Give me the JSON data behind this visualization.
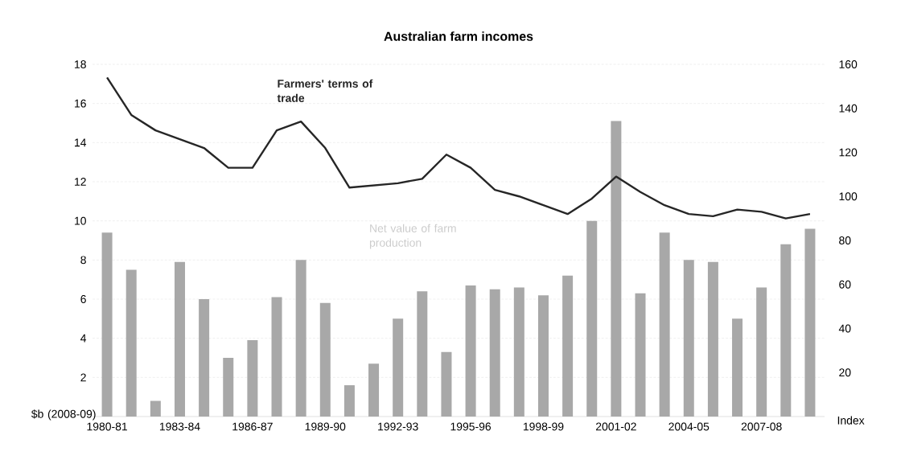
{
  "chart_data": {
    "type": "bar",
    "title": "Australian farm incomes",
    "categories": [
      "1980-81",
      null,
      null,
      "1983-84",
      null,
      null,
      "1986-87",
      null,
      null,
      "1989-90",
      null,
      null,
      "1992-93",
      null,
      null,
      "1995-96",
      null,
      null,
      "1998-99",
      null,
      null,
      "2001-02",
      null,
      null,
      "2004-05",
      null,
      null,
      "2007-08",
      null,
      null
    ],
    "series": [
      {
        "name": "Net value of farm production",
        "color": "#a8a8a8",
        "values": [
          9.4,
          7.5,
          0.8,
          7.9,
          6.0,
          3.0,
          3.9,
          6.1,
          8.0,
          5.8,
          1.6,
          2.7,
          5.0,
          6.4,
          3.3,
          6.7,
          6.5,
          6.6,
          6.2,
          7.2,
          10.0,
          15.1,
          6.3,
          9.4,
          8.0,
          7.9,
          5.0,
          6.6,
          8.8,
          9.6
        ]
      },
      {
        "name": "Farmers' terms of trade",
        "type": "line",
        "axis": "y2",
        "color": "#262626",
        "values": [
          154,
          137,
          130,
          126,
          122,
          113,
          113,
          130,
          134,
          122,
          104,
          105,
          106,
          108,
          119,
          113,
          103,
          100,
          96,
          92,
          99,
          109,
          102,
          96,
          92,
          91,
          94,
          93,
          90,
          92
        ]
      }
    ],
    "ylabel": "$b (2008-09)",
    "y2label": "Index",
    "ylim": [
      0,
      18
    ],
    "yticks": [
      2,
      4,
      6,
      8,
      10,
      12,
      14,
      16,
      18
    ],
    "y2lim": [
      0,
      160
    ],
    "y2ticks": [
      20,
      40,
      60,
      80,
      100,
      120,
      140,
      160
    ],
    "grid": "y",
    "line_style": "solid",
    "marker": "none"
  }
}
